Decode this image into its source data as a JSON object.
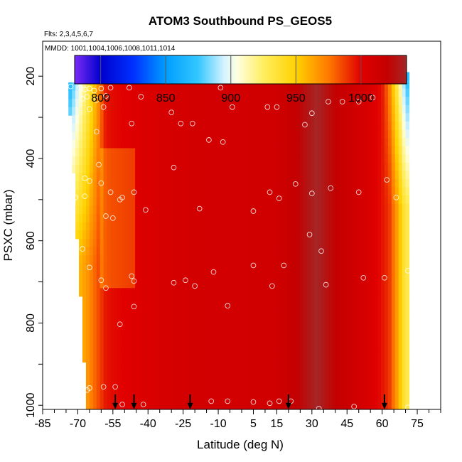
{
  "chart_data": {
    "type": "heatmap",
    "title": "ATOM3 Southbound PS_GEOS5",
    "flights_label": "Flts: 2,3,4,5,6,7",
    "mmdd_label": "MMDD: 1001,1004,1006,1008,1011,1014",
    "xlabel": "Latitude (deg N)",
    "ylabel": "PSXC (mbar)",
    "xlim": [
      -85,
      85
    ],
    "ylim": [
      1010,
      115
    ],
    "x_ticks": [
      -85,
      -70,
      -55,
      -40,
      -25,
      -10,
      5,
      15,
      30,
      45,
      60,
      75
    ],
    "y_ticks": [
      200,
      400,
      600,
      800,
      1000
    ],
    "colorbar": {
      "range": [
        780,
        1035
      ],
      "ticks": [
        800,
        850,
        900,
        950,
        1000
      ],
      "stops": [
        {
          "v": 780,
          "c": "#7b2cf5"
        },
        {
          "v": 800,
          "c": "#0000cd"
        },
        {
          "v": 825,
          "c": "#0030ff"
        },
        {
          "v": 850,
          "c": "#009dff"
        },
        {
          "v": 875,
          "c": "#34c7ff"
        },
        {
          "v": 895,
          "c": "#d6f3ff"
        },
        {
          "v": 905,
          "c": "#ffffe0"
        },
        {
          "v": 925,
          "c": "#ffee60"
        },
        {
          "v": 950,
          "c": "#ffd200"
        },
        {
          "v": 975,
          "c": "#ff7a00"
        },
        {
          "v": 1000,
          "c": "#e00000"
        },
        {
          "v": 1020,
          "c": "#c40000"
        },
        {
          "v": 1035,
          "c": "#a52626"
        }
      ]
    },
    "lat_profile": [
      {
        "lat": -66,
        "v": 990
      },
      {
        "lat": -55,
        "v": 998
      },
      {
        "lat": -45,
        "v": 1002
      },
      {
        "lat": -30,
        "v": 1008
      },
      {
        "lat": -15,
        "v": 1010
      },
      {
        "lat": 0,
        "v": 1010
      },
      {
        "lat": 15,
        "v": 1012
      },
      {
        "lat": 25,
        "v": 1022
      },
      {
        "lat": 32,
        "v": 1035
      },
      {
        "lat": 40,
        "v": 1020
      },
      {
        "lat": 50,
        "v": 1010
      },
      {
        "lat": 58,
        "v": 1000
      },
      {
        "lat": 63,
        "v": 990
      },
      {
        "lat": 67,
        "v": 960
      },
      {
        "lat": 70,
        "v": 930
      }
    ],
    "column_tops": [
      {
        "lat_start": -74,
        "lat_end": -18,
        "p_top": 215
      },
      {
        "lat_start": -18,
        "lat_end": 68,
        "p_top": 170
      },
      {
        "lat_start": 68,
        "lat_end": 71,
        "p_top": 190
      }
    ],
    "obs_points": [
      {
        "lat": -73,
        "p": 225
      },
      {
        "lat": -69,
        "p": 228
      },
      {
        "lat": -67,
        "p": 232
      },
      {
        "lat": -65,
        "p": 230
      },
      {
        "lat": -63,
        "p": 235
      },
      {
        "lat": -60,
        "p": 230
      },
      {
        "lat": -56,
        "p": 228
      },
      {
        "lat": -48,
        "p": 228
      },
      {
        "lat": -68,
        "p": 255
      },
      {
        "lat": -66,
        "p": 250
      },
      {
        "lat": -62,
        "p": 258
      },
      {
        "lat": -58,
        "p": 248
      },
      {
        "lat": -43,
        "p": 250
      },
      {
        "lat": -65,
        "p": 280
      },
      {
        "lat": -59,
        "p": 275
      },
      {
        "lat": -30,
        "p": 288
      },
      {
        "lat": -26,
        "p": 315
      },
      {
        "lat": -21,
        "p": 315
      },
      {
        "lat": -47,
        "p": 315
      },
      {
        "lat": -62,
        "p": 335
      },
      {
        "lat": -17,
        "p": 200
      },
      {
        "lat": -9,
        "p": 228
      },
      {
        "lat": -4,
        "p": 275
      },
      {
        "lat": 11,
        "p": 275
      },
      {
        "lat": 15,
        "p": 275
      },
      {
        "lat": 22,
        "p": 200
      },
      {
        "lat": 30,
        "p": 290
      },
      {
        "lat": 37,
        "p": 262
      },
      {
        "lat": 43,
        "p": 262
      },
      {
        "lat": 50,
        "p": 262
      },
      {
        "lat": 56,
        "p": 252
      },
      {
        "lat": 68,
        "p": 195
      },
      {
        "lat": 27,
        "p": 318
      },
      {
        "lat": -14,
        "p": 355
      },
      {
        "lat": -8,
        "p": 360
      },
      {
        "lat": -61,
        "p": 415
      },
      {
        "lat": -29,
        "p": 422
      },
      {
        "lat": -67,
        "p": 448
      },
      {
        "lat": -65,
        "p": 455
      },
      {
        "lat": -60,
        "p": 460
      },
      {
        "lat": -71,
        "p": 495
      },
      {
        "lat": -67,
        "p": 492
      },
      {
        "lat": -56,
        "p": 482
      },
      {
        "lat": -52,
        "p": 500
      },
      {
        "lat": -51,
        "p": 495
      },
      {
        "lat": -46,
        "p": 482
      },
      {
        "lat": -41,
        "p": 525
      },
      {
        "lat": -18,
        "p": 522
      },
      {
        "lat": 5,
        "p": 528
      },
      {
        "lat": 12,
        "p": 482
      },
      {
        "lat": 16,
        "p": 497
      },
      {
        "lat": 23,
        "p": 462
      },
      {
        "lat": 30,
        "p": 485
      },
      {
        "lat": 38,
        "p": 472
      },
      {
        "lat": 50,
        "p": 482
      },
      {
        "lat": 62,
        "p": 452
      },
      {
        "lat": 66,
        "p": 495
      },
      {
        "lat": -58,
        "p": 540
      },
      {
        "lat": -55,
        "p": 545
      },
      {
        "lat": -68,
        "p": 620
      },
      {
        "lat": 29,
        "p": 585
      },
      {
        "lat": 34,
        "p": 625
      },
      {
        "lat": -65,
        "p": 665
      },
      {
        "lat": 5,
        "p": 660
      },
      {
        "lat": 18,
        "p": 660
      },
      {
        "lat": -12,
        "p": 676
      },
      {
        "lat": -60,
        "p": 696
      },
      {
        "lat": -47,
        "p": 686
      },
      {
        "lat": -46,
        "p": 698
      },
      {
        "lat": -29,
        "p": 702
      },
      {
        "lat": -24,
        "p": 696
      },
      {
        "lat": -20,
        "p": 710
      },
      {
        "lat": 13,
        "p": 710
      },
      {
        "lat": 36,
        "p": 707
      },
      {
        "lat": 52,
        "p": 690
      },
      {
        "lat": 61,
        "p": 690
      },
      {
        "lat": 71,
        "p": 673
      },
      {
        "lat": -58,
        "p": 715
      },
      {
        "lat": -46,
        "p": 760
      },
      {
        "lat": -6,
        "p": 758
      },
      {
        "lat": -52,
        "p": 803
      },
      {
        "lat": -69,
        "p": 945
      },
      {
        "lat": -68,
        "p": 952
      },
      {
        "lat": -66,
        "p": 963
      },
      {
        "lat": -65,
        "p": 958
      },
      {
        "lat": -59,
        "p": 955
      },
      {
        "lat": -54,
        "p": 955
      },
      {
        "lat": -51,
        "p": 998
      },
      {
        "lat": -42,
        "p": 998
      },
      {
        "lat": -13,
        "p": 990
      },
      {
        "lat": -6,
        "p": 990
      },
      {
        "lat": 5,
        "p": 992
      },
      {
        "lat": 12,
        "p": 995
      },
      {
        "lat": 16,
        "p": 990
      },
      {
        "lat": 21,
        "p": 990
      },
      {
        "lat": 33,
        "p": 1008
      },
      {
        "lat": 48,
        "p": 1003
      },
      {
        "lat": 71,
        "p": 1005
      }
    ],
    "arrows": [
      {
        "lat": -54,
        "p": 1008
      },
      {
        "lat": -46,
        "p": 1008
      },
      {
        "lat": -22,
        "p": 1008
      },
      {
        "lat": 20,
        "p": 1008
      },
      {
        "lat": 61,
        "p": 1008
      }
    ]
  }
}
